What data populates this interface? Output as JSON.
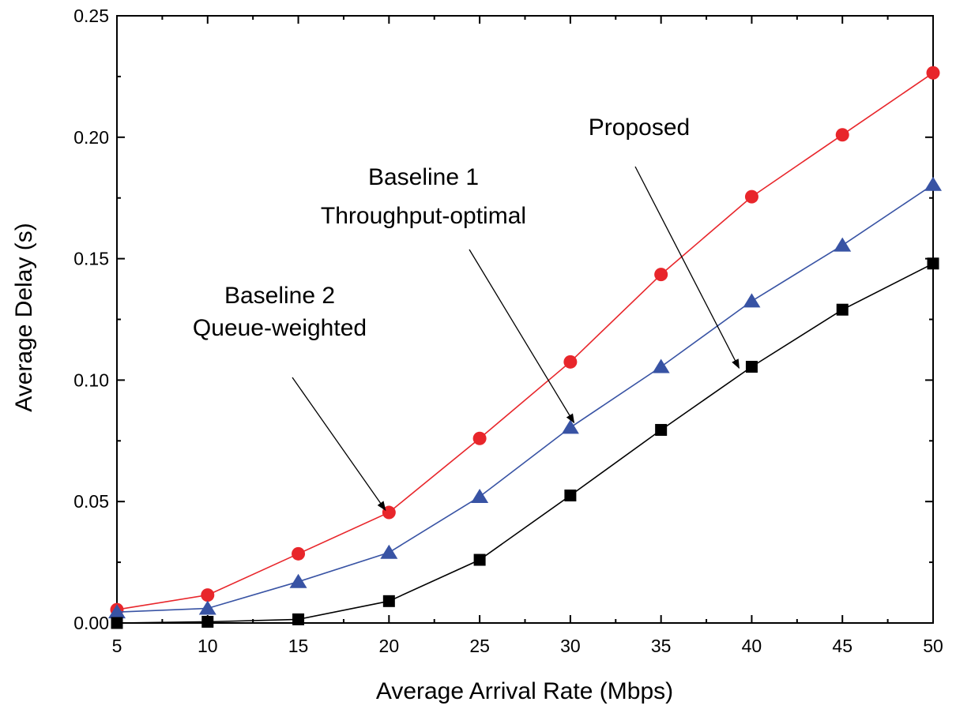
{
  "chart_data": {
    "type": "line",
    "title": "",
    "xlabel": "Average Arrival Rate (Mbps)",
    "ylabel": "Average Delay (s)",
    "xlim": [
      5,
      50
    ],
    "ylim": [
      0,
      0.25
    ],
    "xticks": [
      "5",
      "10",
      "15",
      "20",
      "25",
      "30",
      "35",
      "40",
      "45",
      "50"
    ],
    "yticks": [
      "0.00",
      "0.05",
      "0.10",
      "0.15",
      "0.20",
      "0.25"
    ],
    "grid": false,
    "x": [
      5,
      10,
      15,
      20,
      25,
      30,
      35,
      40,
      45,
      50
    ],
    "series": [
      {
        "key": "baseline2",
        "marker": "circle",
        "color": "#e8262b",
        "values": [
          0.0055,
          0.0115,
          0.0285,
          0.0455,
          0.076,
          0.1075,
          0.1435,
          0.1755,
          0.201,
          0.2265
        ]
      },
      {
        "key": "baseline1",
        "marker": "triangle",
        "color": "#3853a4",
        "values": [
          0.0045,
          0.006,
          0.017,
          0.029,
          0.052,
          0.0805,
          0.1055,
          0.1325,
          0.1555,
          0.1805
        ]
      },
      {
        "key": "proposed",
        "marker": "square",
        "color": "#000000",
        "values": [
          0.0,
          0.0005,
          0.0015,
          0.009,
          0.026,
          0.0525,
          0.0795,
          0.1055,
          0.129,
          0.148
        ]
      }
    ],
    "annotations": [
      {
        "lines": [
          "Baseline 2",
          "Queue-weighted"
        ],
        "target": {
          "x": 19.8,
          "y": 0.0465
        }
      },
      {
        "lines": [
          "Baseline 1",
          "Throughput-optimal"
        ],
        "target": {
          "x": 30.2,
          "y": 0.0825
        }
      },
      {
        "lines": [
          "Proposed"
        ],
        "target": {
          "x": 39.3,
          "y": 0.105
        }
      }
    ]
  }
}
